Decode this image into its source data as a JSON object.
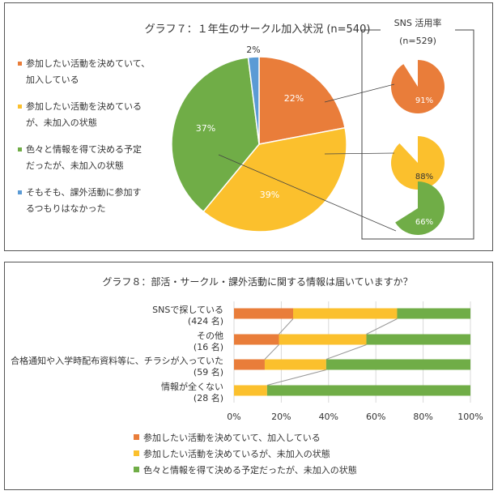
{
  "chart_data": [
    {
      "type": "pie",
      "title": "グラフ７：１年生のサークル加入状況 (n=540)",
      "categories": [
        "参加したい活動を決めていて、加入している",
        "参加したい活動を決めているが、未加入の状態",
        "色々と情報を得て決める予定だったが、未加入の状態",
        "そもそも、課外活動に参加するつもりはなかった"
      ],
      "legend_lines": [
        [
          "参加したい活動を決めていて、",
          "加入している"
        ],
        [
          "参加したい活動を決めている",
          "が、未加入の状態"
        ],
        [
          "色々と情報を得て決める予定",
          "だったが、未加入の状態"
        ],
        [
          "そもそも、課外活動に参加す",
          "るつもりはなかった"
        ]
      ],
      "values": [
        22,
        39,
        37,
        2
      ],
      "labels": [
        "22%",
        "39%",
        "37%",
        "2%"
      ],
      "colors": [
        "#E97D3A",
        "#FBC02D",
        "#70AD47",
        "#5B9BD5"
      ],
      "legend": "left",
      "inset": {
        "title": "SNS 活用率",
        "subtitle": "(n=529)",
        "values": [
          91,
          88,
          66
        ],
        "labels": [
          "91%",
          "88%",
          "66%"
        ]
      }
    },
    {
      "type": "bar",
      "stacked": true,
      "orientation": "horizontal",
      "title": "グラフ８：部活・サークル・課外活動に関する情報は届いていますか？",
      "categories": [
        [
          "SNSで探している",
          "(424 名)"
        ],
        [
          "その他",
          "(16 名)"
        ],
        [
          "合格通知や入学時配布資料等に、チラシが入っていた",
          "(59 名)"
        ],
        [
          "情報が全くない",
          "(28 名)"
        ]
      ],
      "series": [
        {
          "name": "参加したい活動を決めていて、加入している",
          "color": "#E97D3A",
          "values": [
            25,
            19,
            13,
            0
          ]
        },
        {
          "name": "参加したい活動を決めているが、未加入の状態",
          "color": "#FBC02D",
          "values": [
            44,
            37,
            26,
            14
          ]
        },
        {
          "name": "色々と情報を得て決める予定だったが、未加入の状態",
          "color": "#70AD47",
          "values": [
            31,
            44,
            61,
            86
          ]
        }
      ],
      "xlim": [
        0,
        100
      ],
      "xticks": [
        "0%",
        "20%",
        "40%",
        "60%",
        "80%",
        "100%"
      ],
      "grid": true,
      "legend": "bottom"
    }
  ]
}
